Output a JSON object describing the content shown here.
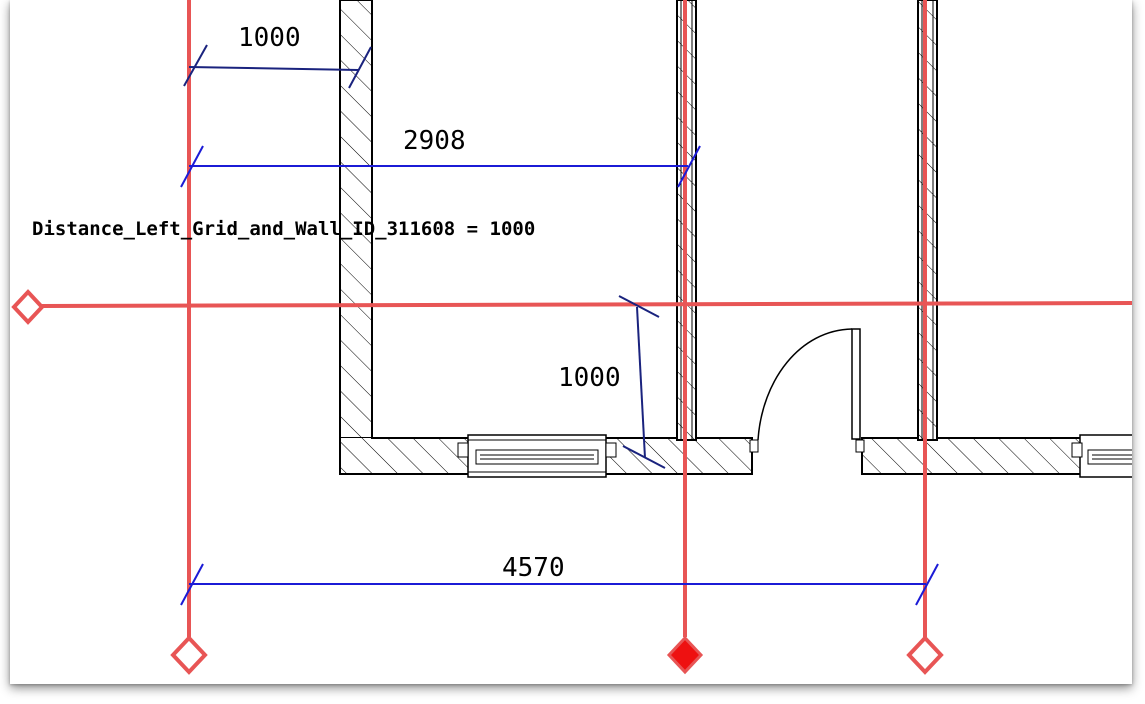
{
  "drawing": {
    "dimension_1": "1000",
    "dimension_2": "2908",
    "dimension_3": "1000",
    "dimension_4": "4570",
    "parameter_label": "Distance_Left_Grid_and_Wall_ID_311608 = 1000"
  },
  "colors": {
    "grid_line": "#e85555",
    "dimension_line": "#1b1bd6",
    "dimension_line_dark": "#1a237e",
    "wall": "#000000",
    "selected_grid_head": "#ee1111"
  },
  "icons": {
    "grid_head": "diamond-icon",
    "selected_grid_head": "filled-diamond-icon"
  }
}
